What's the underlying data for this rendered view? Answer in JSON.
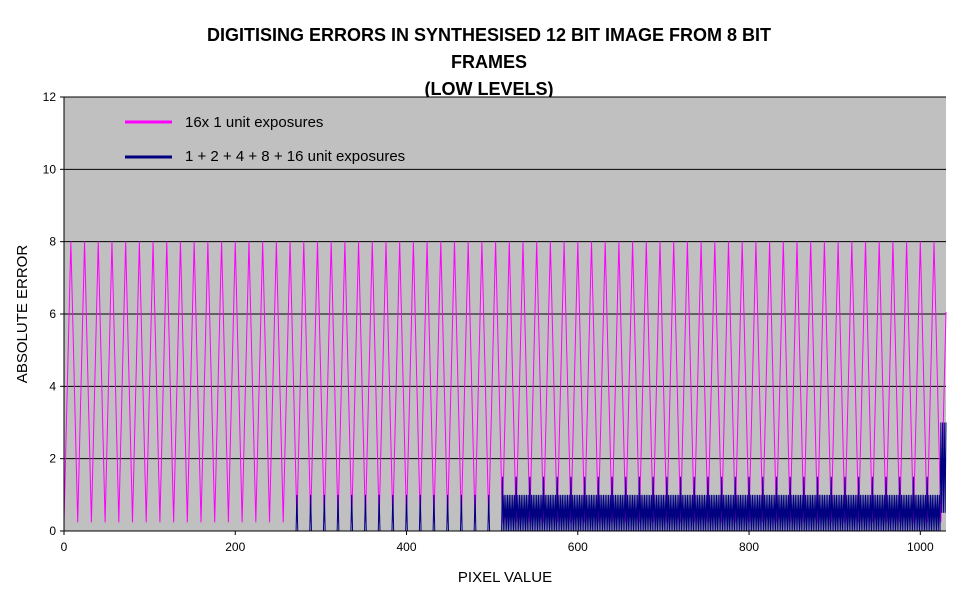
{
  "chart_data": {
    "type": "line",
    "title_lines": [
      "DIGITISING ERRORS IN SYNTHESISED 12  BIT IMAGE FROM 8 BIT",
      "FRAMES",
      "(LOW LEVELS)"
    ],
    "xlabel": "PIXEL VALUE",
    "ylabel": "ABSOLUTE ERROR",
    "xlim": [
      0,
      1030
    ],
    "ylim": [
      0,
      12
    ],
    "xticks": [
      0,
      200,
      400,
      600,
      800,
      1000
    ],
    "yticks": [
      0,
      2,
      4,
      6,
      8,
      10,
      12
    ],
    "grid": "horizontal",
    "plot_background": "#c0c0c0",
    "legend_position": "top-left",
    "series": [
      {
        "name": "16x 1 unit exposures",
        "color": "#ff00ff",
        "pattern": "sawtooth",
        "period": 16,
        "min": 0,
        "max": 8,
        "x_range": [
          0,
          1030
        ]
      },
      {
        "name": "1 + 2 + 4 + 8 + 16 unit exposures",
        "color": "#000080",
        "segments": [
          {
            "x_range": [
              0,
              270
            ],
            "value": 0
          },
          {
            "x_range": [
              270,
              512
            ],
            "spike_period": 16,
            "spike_value": 1
          },
          {
            "x_range": [
              512,
              1024
            ],
            "base_max": 1,
            "spike_period": 16,
            "spike_value": 1.5
          },
          {
            "x_range": [
              1024,
              1030
            ],
            "spike_value": 3
          }
        ]
      }
    ]
  }
}
